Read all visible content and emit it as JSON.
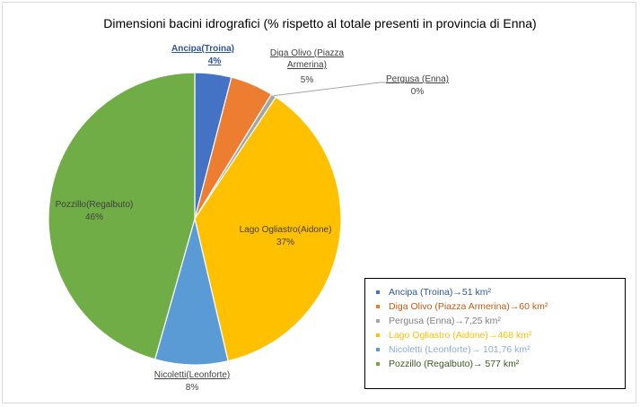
{
  "chart_data": {
    "type": "pie",
    "title": "Dimensioni bacini idrografici (% rispetto al totale presenti in provincia di Enna)",
    "slices": [
      {
        "label": "Ancipa(Troina)",
        "value": 51,
        "percent_label": "4%",
        "color": "#4472c4",
        "label_color": "#2f5597",
        "legend": "Ancipa (Troina)→51 km²"
      },
      {
        "label": "Diga Olivo (Piazza Armerina)",
        "value": 60,
        "percent_label": "5%",
        "color": "#ed7d31",
        "label_color": "#404040",
        "legend": "Diga Olivo (Piazza Armerina)→60 km²"
      },
      {
        "label": "Pergusa (Enna)",
        "value": 7.25,
        "percent_label": "0%",
        "color": "#a5a5a5",
        "label_color": "#404040",
        "legend": "Pergusa (Enna)→7,25 km²"
      },
      {
        "label": "Lago Ogliastro(Aidone)",
        "value": 468,
        "percent_label": "37%",
        "color": "#ffc000",
        "label_color": "#404040",
        "legend": "Lago Ogliastro (Aidone)→468 km²"
      },
      {
        "label": "Nicoletti(Leonforte)",
        "value": 101.76,
        "percent_label": "8%",
        "color": "#5b9bd5",
        "label_color": "#404040",
        "legend": "Nicoletti (Leonforte)→ 101,76 km²"
      },
      {
        "label": "Pozzillo(Regalbuto)",
        "value": 577,
        "percent_label": "46%",
        "color": "#70ad47",
        "label_color": "#404040",
        "legend": "Pozzillo (Regalbuto)→  577 km²"
      }
    ],
    "legend_placement": "bottom-right"
  },
  "legend_text_colors": [
    "#2f5597",
    "#c55a11",
    "#7f7f7f",
    "#ffc000",
    "#8faadc",
    "#375623"
  ]
}
